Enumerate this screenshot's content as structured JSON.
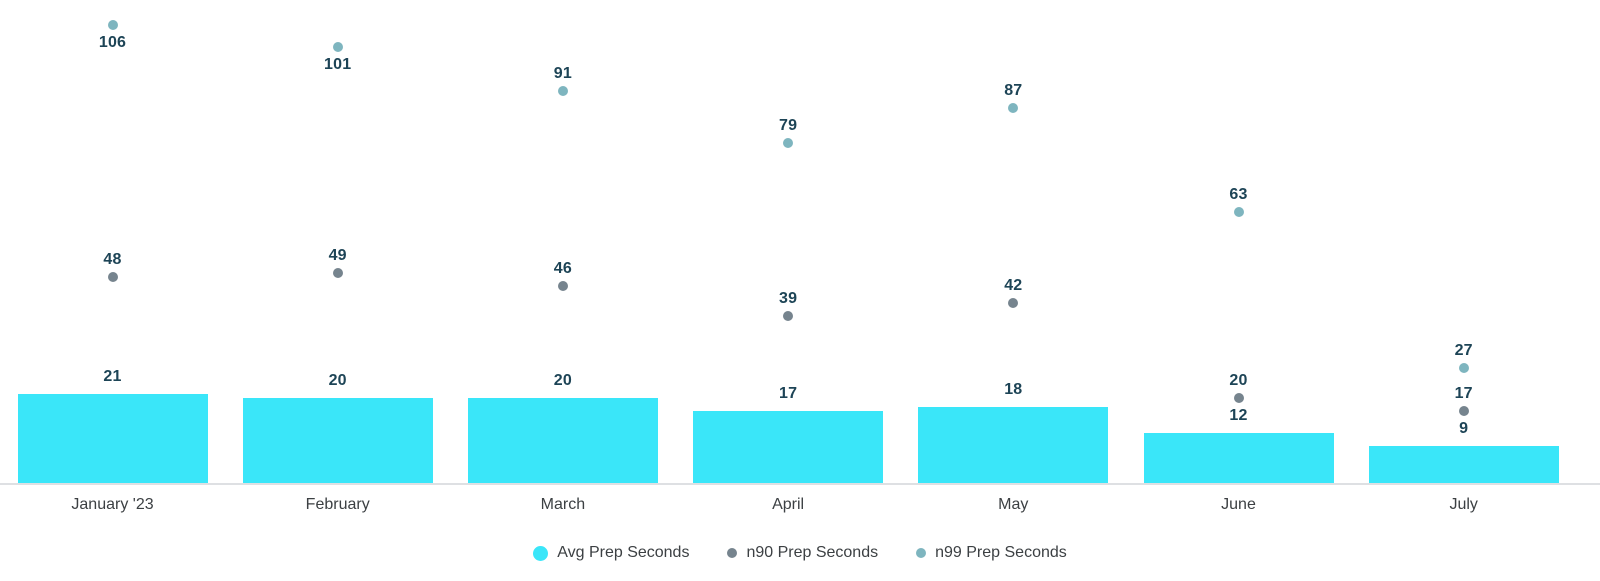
{
  "chart_data": {
    "type": "bar",
    "title": "",
    "xlabel": "",
    "ylabel": "",
    "categories": [
      "January '23",
      "February",
      "March",
      "April",
      "May",
      "June",
      "July"
    ],
    "series": [
      {
        "name": "Avg Prep Seconds",
        "kind": "bar",
        "color": "#3AE6F9",
        "values": [
          21,
          20,
          20,
          17,
          18,
          12,
          9
        ]
      },
      {
        "name": "n90 Prep Seconds",
        "kind": "point",
        "color": "#76848E",
        "values": [
          48,
          49,
          46,
          39,
          42,
          20,
          17
        ]
      },
      {
        "name": "n99 Prep Seconds",
        "kind": "point",
        "color": "#7EB5BF",
        "values": [
          106,
          101,
          91,
          79,
          87,
          63,
          27
        ]
      }
    ],
    "ylim": [
      0,
      112
    ],
    "grid": false,
    "y_axis_visible": false,
    "value_labels": true,
    "legend_position": "bottom",
    "colors": {
      "value_label": "#1D4456",
      "axis_label": "#3C4043",
      "legend_label": "#3C4043",
      "axis_line": "#DEE0E3",
      "background": "#FFFFFF"
    }
  }
}
